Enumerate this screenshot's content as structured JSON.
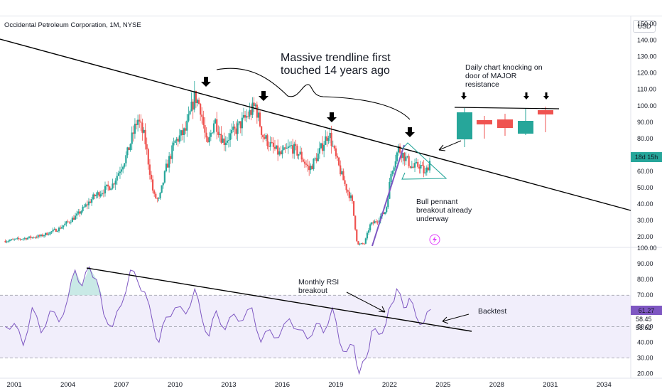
{
  "header": {
    "title": "Occidental Petroleum Corporation, 1M, NYSE",
    "currency": "USD"
  },
  "colors": {
    "up": "#26a69a",
    "down": "#ef5350",
    "rsi": "#7e57c2",
    "pennant": "#26a69a",
    "band": "#f1eefb",
    "trend": "#000000"
  },
  "annotations": {
    "trendline": "Massive trendline first\ntouched 14 years ago",
    "daily": "Daily chart knocking on\ndoor of MAJOR\nresistance",
    "pennant": "Bull pennant\nbreakout already\nunderway",
    "rsi_breakout": "Monthly RSI\nbreakout",
    "backtest": "Backtest"
  },
  "chart_data": [
    {
      "type": "candlestick",
      "title": "Occidental Petroleum Corporation, 1M, NYSE",
      "ylabel": "USD",
      "yticks": [
        20,
        30,
        40,
        50,
        60,
        70,
        80,
        90,
        100,
        110,
        120,
        130,
        140,
        150
      ],
      "ylim": [
        14,
        155
      ],
      "xticks": [
        "2001",
        "2004",
        "2007",
        "2010",
        "2013",
        "2016",
        "2019",
        "2022",
        "2025",
        "2028",
        "2031",
        "2034"
      ],
      "xlim": [
        2000.2,
        2035.5
      ],
      "countdown_label": "18d 15h",
      "series": [
        {
          "x": 2000.5,
          "y": 17.5
        },
        {
          "x": 2001.5,
          "y": 19
        },
        {
          "x": 2002.5,
          "y": 20.5
        },
        {
          "x": 2003.5,
          "y": 25
        },
        {
          "x": 2004.5,
          "y": 33
        },
        {
          "x": 2005.5,
          "y": 45
        },
        {
          "x": 2006.5,
          "y": 52
        },
        {
          "x": 2007.3,
          "y": 70
        },
        {
          "x": 2007.9,
          "y": 92
        },
        {
          "x": 2008.3,
          "y": 80
        },
        {
          "x": 2008.8,
          "y": 45
        },
        {
          "x": 2009.1,
          "y": 42
        },
        {
          "x": 2009.5,
          "y": 62
        },
        {
          "x": 2010.0,
          "y": 78
        },
        {
          "x": 2010.6,
          "y": 85
        },
        {
          "x": 2011.1,
          "y": 106
        },
        {
          "x": 2011.4,
          "y": 100
        },
        {
          "x": 2011.8,
          "y": 74
        },
        {
          "x": 2012.2,
          "y": 92
        },
        {
          "x": 2012.7,
          "y": 78
        },
        {
          "x": 2013.3,
          "y": 84
        },
        {
          "x": 2013.9,
          "y": 92
        },
        {
          "x": 2014.5,
          "y": 100
        },
        {
          "x": 2014.9,
          "y": 82
        },
        {
          "x": 2015.4,
          "y": 75
        },
        {
          "x": 2015.9,
          "y": 70
        },
        {
          "x": 2016.5,
          "y": 75
        },
        {
          "x": 2017.0,
          "y": 70
        },
        {
          "x": 2017.5,
          "y": 61
        },
        {
          "x": 2018.0,
          "y": 70
        },
        {
          "x": 2018.6,
          "y": 84
        },
        {
          "x": 2019.0,
          "y": 68
        },
        {
          "x": 2019.5,
          "y": 52
        },
        {
          "x": 2019.9,
          "y": 42
        },
        {
          "x": 2020.2,
          "y": 15
        },
        {
          "x": 2020.6,
          "y": 16
        },
        {
          "x": 2020.9,
          "y": 27
        },
        {
          "x": 2021.3,
          "y": 30
        },
        {
          "x": 2021.8,
          "y": 36
        },
        {
          "x": 2022.1,
          "y": 60
        },
        {
          "x": 2022.5,
          "y": 74
        },
        {
          "x": 2022.9,
          "y": 68
        },
        {
          "x": 2023.3,
          "y": 62
        },
        {
          "x": 2023.7,
          "y": 64
        },
        {
          "x": 2024.0,
          "y": 58
        },
        {
          "x": 2024.3,
          "y": 68
        }
      ]
    },
    {
      "type": "line",
      "title": "",
      "ylabel": "",
      "yticks": [
        20,
        30,
        40,
        50,
        60,
        70,
        80,
        90,
        100
      ],
      "ylim": [
        18,
        100
      ],
      "overbought": 70,
      "oversold": 30,
      "reference_labels": [
        "58.45",
        "53.62"
      ],
      "current_label": "61.27",
      "series": [
        {
          "x": 2000.5,
          "y": 50
        },
        {
          "x": 2001.0,
          "y": 52
        },
        {
          "x": 2001.5,
          "y": 38
        },
        {
          "x": 2002.0,
          "y": 62
        },
        {
          "x": 2002.5,
          "y": 46
        },
        {
          "x": 2003.0,
          "y": 60
        },
        {
          "x": 2003.5,
          "y": 53
        },
        {
          "x": 2004.0,
          "y": 68
        },
        {
          "x": 2004.4,
          "y": 86
        },
        {
          "x": 2004.8,
          "y": 76
        },
        {
          "x": 2005.2,
          "y": 88
        },
        {
          "x": 2005.6,
          "y": 80
        },
        {
          "x": 2006.0,
          "y": 58
        },
        {
          "x": 2006.5,
          "y": 50
        },
        {
          "x": 2007.0,
          "y": 64
        },
        {
          "x": 2007.5,
          "y": 86
        },
        {
          "x": 2007.9,
          "y": 79
        },
        {
          "x": 2008.3,
          "y": 72
        },
        {
          "x": 2008.8,
          "y": 50
        },
        {
          "x": 2009.1,
          "y": 40
        },
        {
          "x": 2009.5,
          "y": 56
        },
        {
          "x": 2010.0,
          "y": 62
        },
        {
          "x": 2010.6,
          "y": 58
        },
        {
          "x": 2011.1,
          "y": 74
        },
        {
          "x": 2011.5,
          "y": 55
        },
        {
          "x": 2011.9,
          "y": 44
        },
        {
          "x": 2012.3,
          "y": 60
        },
        {
          "x": 2012.8,
          "y": 48
        },
        {
          "x": 2013.3,
          "y": 58
        },
        {
          "x": 2013.8,
          "y": 54
        },
        {
          "x": 2014.3,
          "y": 62
        },
        {
          "x": 2014.8,
          "y": 40
        },
        {
          "x": 2015.3,
          "y": 48
        },
        {
          "x": 2015.8,
          "y": 43
        },
        {
          "x": 2016.4,
          "y": 55
        },
        {
          "x": 2016.9,
          "y": 48
        },
        {
          "x": 2017.4,
          "y": 42
        },
        {
          "x": 2017.9,
          "y": 52
        },
        {
          "x": 2018.3,
          "y": 46
        },
        {
          "x": 2018.8,
          "y": 62
        },
        {
          "x": 2019.2,
          "y": 40
        },
        {
          "x": 2019.6,
          "y": 34
        },
        {
          "x": 2020.0,
          "y": 38
        },
        {
          "x": 2020.3,
          "y": 20
        },
        {
          "x": 2020.7,
          "y": 30
        },
        {
          "x": 2021.0,
          "y": 47
        },
        {
          "x": 2021.4,
          "y": 45
        },
        {
          "x": 2021.8,
          "y": 52
        },
        {
          "x": 2022.1,
          "y": 64
        },
        {
          "x": 2022.4,
          "y": 74
        },
        {
          "x": 2022.8,
          "y": 62
        },
        {
          "x": 2023.1,
          "y": 68
        },
        {
          "x": 2023.5,
          "y": 56
        },
        {
          "x": 2023.9,
          "y": 52
        },
        {
          "x": 2024.3,
          "y": 61
        }
      ]
    }
  ]
}
